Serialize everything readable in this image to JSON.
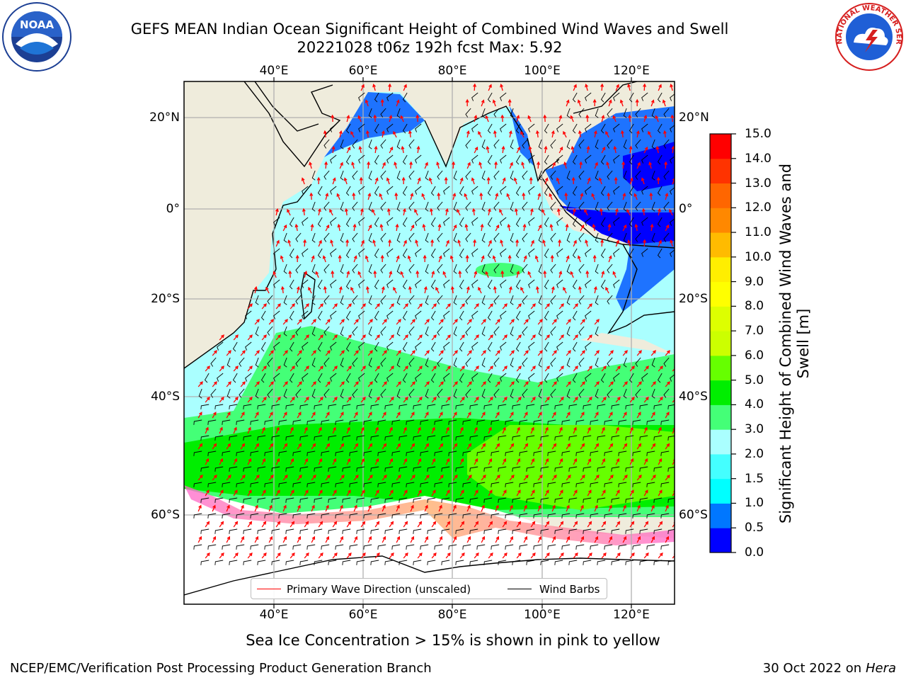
{
  "title": {
    "line1": "GEFS MEAN Indian Ocean Significant Height of Combined Wind Waves and Swell",
    "line2": "20221028 t06z 192h fcst   Max: 5.92"
  },
  "logos": {
    "left": "noaa-logo",
    "left_text": "NOAA",
    "right": "national-weather-service-logo",
    "right_text": "NATIONAL WEATHER SERVICE"
  },
  "map": {
    "lon_ticks": [
      "40°E",
      "60°E",
      "80°E",
      "100°E",
      "120°E"
    ],
    "lat_ticks": [
      "20°N",
      "0°",
      "20°S",
      "40°S",
      "60°S"
    ],
    "lon_range": [
      20,
      130
    ],
    "lat_range": [
      -75,
      27
    ],
    "colors": {
      "land": "#efecdc",
      "grid": "#b0b0b0",
      "wave_dir": "#ff0000",
      "barb": "#000000"
    }
  },
  "legend": {
    "wave_label": "Primary Wave Direction (unscaled)",
    "wind_label": "Wind Barbs"
  },
  "colorbar": {
    "title": "Significant Height of Combined Wind Waves and Swell [m]",
    "ticks": [
      "0.0",
      "0.5",
      "1.0",
      "1.5",
      "2.0",
      "3.0",
      "4.0",
      "5.0",
      "6.0",
      "7.0",
      "8.0",
      "9.0",
      "10.0",
      "11.0",
      "12.0",
      "13.0",
      "14.0",
      "15.0"
    ],
    "colors": [
      "#0000ff",
      "#0077ff",
      "#00ffff",
      "#44ffff",
      "#aaffff",
      "#44ff77",
      "#00ee00",
      "#66ff00",
      "#ccff00",
      "#ddff00",
      "#ffff00",
      "#ffee00",
      "#ffbb00",
      "#ff8800",
      "#ff6600",
      "#ff3300",
      "#ff0000"
    ]
  },
  "caption": "Sea Ice Concentration > 15% is shown in pink to yellow",
  "footer": {
    "left": "NCEP/EMC/Verification Post Processing Product Generation Branch",
    "right_prefix": "30 Oct 2022 on ",
    "right_system": "Hera"
  }
}
